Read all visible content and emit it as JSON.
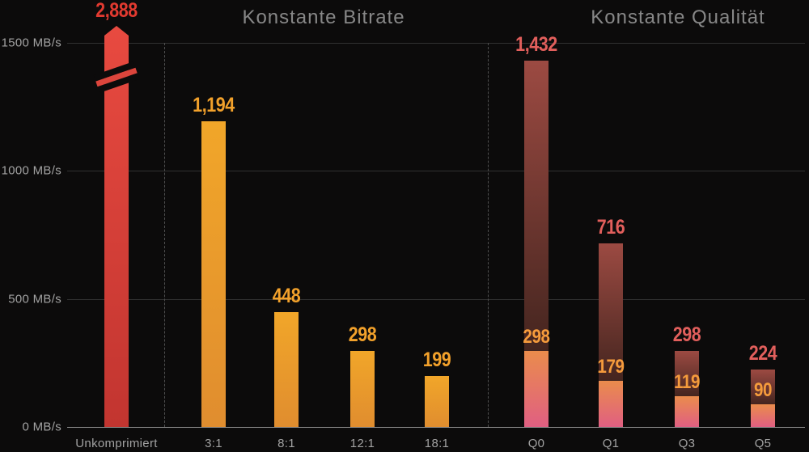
{
  "chart_data": {
    "type": "bar",
    "unit": "MB/s",
    "sections": [
      {
        "title": "Konstante Bitrate"
      },
      {
        "title": "Konstante Qualität"
      }
    ],
    "y_axis": {
      "ticks": [
        {
          "value": 0,
          "label": "0 MB/s"
        },
        {
          "value": 500,
          "label": "500 MB/s"
        },
        {
          "value": 1000,
          "label": "1000 MB/s"
        },
        {
          "value": 1500,
          "label": "1500 MB/s"
        }
      ],
      "max_visible": 1500,
      "grid": true
    },
    "bars": [
      {
        "category": "Unkomprimiert",
        "value": 2888,
        "value_label": "2,888",
        "style": "red",
        "axis_break": true,
        "section": null
      },
      {
        "category": "3:1",
        "value": 1194,
        "value_label": "1,194",
        "style": "orange",
        "section": "Konstante Bitrate"
      },
      {
        "category": "8:1",
        "value": 448,
        "value_label": "448",
        "style": "orange",
        "section": "Konstante Bitrate"
      },
      {
        "category": "12:1",
        "value": 298,
        "value_label": "298",
        "style": "orange",
        "section": "Konstante Bitrate"
      },
      {
        "category": "18:1",
        "value": 199,
        "value_label": "199",
        "style": "orange",
        "section": "Konstante Bitrate"
      },
      {
        "category": "Q0",
        "value": 1432,
        "value_label": "1,432",
        "inner_value": 298,
        "inner_label": "298",
        "style": "stacked",
        "section": "Konstante Qualität"
      },
      {
        "category": "Q1",
        "value": 716,
        "value_label": "716",
        "inner_value": 179,
        "inner_label": "179",
        "style": "stacked",
        "section": "Konstante Qualität"
      },
      {
        "category": "Q3",
        "value": 298,
        "value_label": "298",
        "inner_value": 119,
        "inner_label": "119",
        "style": "stacked",
        "section": "Konstante Qualität"
      },
      {
        "category": "Q5",
        "value": 224,
        "value_label": "224",
        "inner_value": 90,
        "inner_label": "90",
        "style": "stacked",
        "section": "Konstante Qualität"
      }
    ],
    "colors": {
      "background": "#0c0b0b",
      "bar_red_top": "#e84a40",
      "bar_red_bottom": "#c23530",
      "bar_orange_top": "#f1a629",
      "bar_orange_bottom": "#e08d2f",
      "bar_dark_top": "#9c4a42",
      "bar_dark_bottom": "#44251f",
      "bar_inner_top": "#ea8c4c",
      "bar_inner_bottom": "#e05f82",
      "value_red": "#e23a30",
      "value_orange": "#f2a12b",
      "value_salmon": "#e25f5c",
      "value_inner_orange": "#f59b3c",
      "axis_text": "#a2a2a2",
      "title_text": "#878787",
      "gridline": "#313131",
      "axis_line": "#8f8f8f",
      "divider_dash": "#4f4f4f"
    }
  }
}
